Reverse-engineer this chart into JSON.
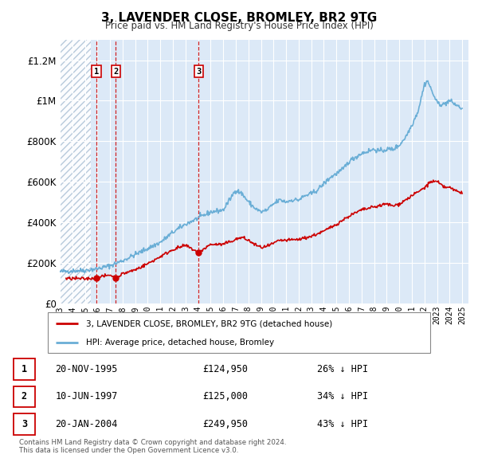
{
  "title": "3, LAVENDER CLOSE, BROMLEY, BR2 9TG",
  "subtitle": "Price paid vs. HM Land Registry's House Price Index (HPI)",
  "sale_labels": [
    "1",
    "2",
    "3"
  ],
  "sale_dates_num": [
    1995.917,
    1997.45,
    2004.05
  ],
  "sale_prices": [
    124950,
    125000,
    249950
  ],
  "legend_entries": [
    "3, LAVENDER CLOSE, BROMLEY, BR2 9TG (detached house)",
    "HPI: Average price, detached house, Bromley"
  ],
  "table_rows": [
    [
      "1",
      "20-NOV-1995",
      "£124,950",
      "26% ↓ HPI"
    ],
    [
      "2",
      "10-JUN-1997",
      "£125,000",
      "34% ↓ HPI"
    ],
    [
      "3",
      "20-JAN-2004",
      "£249,950",
      "43% ↓ HPI"
    ]
  ],
  "footnote": "Contains HM Land Registry data © Crown copyright and database right 2024.\nThis data is licensed under the Open Government Licence v3.0.",
  "hpi_line_color": "#6aaed6",
  "sold_line_color": "#cc0000",
  "sold_dot_color": "#cc0000",
  "bg_color": "#dce9f7",
  "hatch_color": "#c8d8e8",
  "grid_color": "#ffffff",
  "ylim": [
    0,
    1300000
  ],
  "yticks": [
    0,
    200000,
    400000,
    600000,
    800000,
    1000000,
    1200000
  ],
  "xlim_start": 1993.0,
  "xlim_end": 2025.5,
  "xticks": [
    1993,
    1994,
    1995,
    1996,
    1997,
    1998,
    1999,
    2000,
    2001,
    2002,
    2003,
    2004,
    2005,
    2006,
    2007,
    2008,
    2009,
    2010,
    2011,
    2012,
    2013,
    2014,
    2015,
    2016,
    2017,
    2018,
    2019,
    2020,
    2021,
    2022,
    2023,
    2024,
    2025
  ],
  "hpi_points": [
    [
      1993.0,
      155000
    ],
    [
      1994.0,
      160000
    ],
    [
      1995.0,
      162000
    ],
    [
      1996.0,
      170000
    ],
    [
      1997.0,
      185000
    ],
    [
      1998.0,
      210000
    ],
    [
      1999.0,
      240000
    ],
    [
      2000.0,
      270000
    ],
    [
      2001.0,
      300000
    ],
    [
      2002.0,
      350000
    ],
    [
      2003.0,
      390000
    ],
    [
      2004.0,
      420000
    ],
    [
      2005.0,
      450000
    ],
    [
      2006.0,
      460000
    ],
    [
      2007.0,
      560000
    ],
    [
      2007.5,
      540000
    ],
    [
      2008.0,
      500000
    ],
    [
      2008.5,
      470000
    ],
    [
      2009.0,
      450000
    ],
    [
      2009.5,
      460000
    ],
    [
      2010.0,
      490000
    ],
    [
      2010.5,
      510000
    ],
    [
      2011.0,
      500000
    ],
    [
      2011.5,
      510000
    ],
    [
      2012.0,
      510000
    ],
    [
      2012.5,
      530000
    ],
    [
      2013.0,
      540000
    ],
    [
      2013.5,
      560000
    ],
    [
      2014.0,
      590000
    ],
    [
      2014.5,
      620000
    ],
    [
      2015.0,
      640000
    ],
    [
      2015.5,
      660000
    ],
    [
      2016.0,
      700000
    ],
    [
      2016.5,
      720000
    ],
    [
      2017.0,
      740000
    ],
    [
      2017.5,
      750000
    ],
    [
      2018.0,
      760000
    ],
    [
      2018.5,
      750000
    ],
    [
      2019.0,
      760000
    ],
    [
      2019.5,
      760000
    ],
    [
      2020.0,
      780000
    ],
    [
      2020.5,
      820000
    ],
    [
      2021.0,
      880000
    ],
    [
      2021.5,
      950000
    ],
    [
      2022.0,
      1080000
    ],
    [
      2022.25,
      1100000
    ],
    [
      2022.5,
      1060000
    ],
    [
      2023.0,
      990000
    ],
    [
      2023.5,
      980000
    ],
    [
      2024.0,
      1000000
    ],
    [
      2024.5,
      980000
    ],
    [
      2025.0,
      960000
    ]
  ],
  "sold_points": [
    [
      1993.5,
      120000
    ],
    [
      1994.0,
      122000
    ],
    [
      1995.0,
      120000
    ],
    [
      1995.917,
      124950
    ],
    [
      1996.0,
      126000
    ],
    [
      1996.5,
      133000
    ],
    [
      1997.0,
      140000
    ],
    [
      1997.45,
      125000
    ],
    [
      1998.0,
      145000
    ],
    [
      1999.0,
      165000
    ],
    [
      2000.0,
      195000
    ],
    [
      2001.0,
      230000
    ],
    [
      2002.0,
      265000
    ],
    [
      2003.0,
      285000
    ],
    [
      2004.05,
      249950
    ],
    [
      2004.5,
      270000
    ],
    [
      2005.0,
      290000
    ],
    [
      2006.0,
      290000
    ],
    [
      2007.0,
      315000
    ],
    [
      2007.5,
      325000
    ],
    [
      2008.0,
      310000
    ],
    [
      2008.5,
      290000
    ],
    [
      2009.0,
      275000
    ],
    [
      2009.5,
      280000
    ],
    [
      2010.0,
      295000
    ],
    [
      2010.5,
      310000
    ],
    [
      2011.0,
      310000
    ],
    [
      2012.0,
      315000
    ],
    [
      2013.0,
      330000
    ],
    [
      2014.0,
      355000
    ],
    [
      2015.0,
      390000
    ],
    [
      2016.0,
      430000
    ],
    [
      2017.0,
      460000
    ],
    [
      2018.0,
      475000
    ],
    [
      2019.0,
      490000
    ],
    [
      2019.5,
      480000
    ],
    [
      2020.0,
      490000
    ],
    [
      2020.5,
      510000
    ],
    [
      2021.0,
      530000
    ],
    [
      2022.0,
      570000
    ],
    [
      2022.5,
      600000
    ],
    [
      2023.0,
      600000
    ],
    [
      2023.5,
      575000
    ],
    [
      2024.0,
      570000
    ],
    [
      2024.5,
      555000
    ],
    [
      2025.0,
      545000
    ]
  ]
}
